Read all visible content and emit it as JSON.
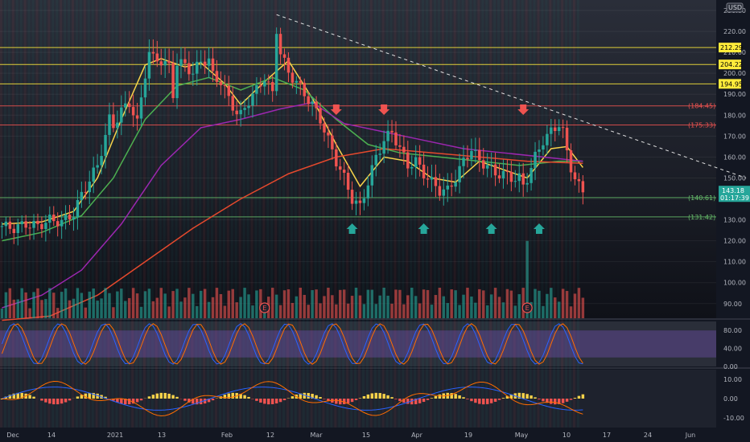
{
  "chart_data": [
    {
      "type": "candlestick",
      "title": "",
      "currency": "USD",
      "ylim": [
        83,
        235
      ],
      "yticks": [
        90,
        100,
        110,
        120,
        130,
        140,
        150,
        160,
        170,
        180,
        190,
        200,
        210,
        220,
        230
      ],
      "ytick_labels": [
        "90.00",
        "100.00",
        "110.00",
        "120.00",
        "130.00",
        "140.00",
        "150.00",
        "160.00",
        "170.00",
        "180.00",
        "190.00",
        "200.00",
        "210.00",
        "220.00",
        "230.00"
      ],
      "x_labels": [
        "Dec",
        "14",
        "2021",
        "13",
        "Feb",
        "12",
        "Mar",
        "15",
        "Apr",
        "19",
        "May",
        "10",
        "17",
        "24",
        "Jun"
      ],
      "close_path": [
        [
          0,
          127
        ],
        [
          3,
          126
        ],
        [
          6,
          128
        ],
        [
          9,
          127
        ],
        [
          12,
          130
        ],
        [
          15,
          129
        ],
        [
          18,
          133
        ],
        [
          20,
          142
        ],
        [
          22,
          149
        ],
        [
          24,
          156
        ],
        [
          26,
          170
        ],
        [
          27,
          178
        ],
        [
          28,
          175
        ],
        [
          30,
          182
        ],
        [
          32,
          186
        ],
        [
          34,
          176
        ],
        [
          36,
          200
        ],
        [
          37,
          210
        ],
        [
          38,
          207
        ],
        [
          40,
          206
        ],
        [
          42,
          203
        ],
        [
          43,
          190
        ],
        [
          44,
          205
        ],
        [
          46,
          204
        ],
        [
          48,
          200
        ],
        [
          50,
          206
        ],
        [
          52,
          206
        ],
        [
          53,
          199
        ],
        [
          55,
          196
        ],
        [
          57,
          188
        ],
        [
          59,
          181
        ],
        [
          60,
          180
        ],
        [
          62,
          187
        ],
        [
          64,
          192
        ],
        [
          66,
          198
        ],
        [
          68,
          190
        ],
        [
          69,
          221
        ],
        [
          70,
          210
        ],
        [
          72,
          200
        ],
        [
          74,
          196
        ],
        [
          76,
          190
        ],
        [
          78,
          185
        ],
        [
          80,
          178
        ],
        [
          82,
          168
        ],
        [
          84,
          158
        ],
        [
          86,
          150
        ],
        [
          88,
          140
        ],
        [
          90,
          136
        ],
        [
          92,
          148
        ],
        [
          94,
          160
        ],
        [
          96,
          168
        ],
        [
          98,
          172
        ],
        [
          100,
          164
        ],
        [
          102,
          156
        ],
        [
          104,
          158
        ],
        [
          106,
          152
        ],
        [
          108,
          148
        ],
        [
          110,
          144
        ],
        [
          112,
          144
        ],
        [
          114,
          150
        ],
        [
          116,
          158
        ],
        [
          118,
          164
        ],
        [
          120,
          158
        ],
        [
          122,
          156
        ],
        [
          124,
          152
        ],
        [
          126,
          152
        ],
        [
          128,
          150
        ],
        [
          130,
          150
        ],
        [
          131,
          146
        ],
        [
          132,
          150
        ],
        [
          134,
          160
        ],
        [
          136,
          168
        ],
        [
          138,
          172
        ],
        [
          140,
          176
        ],
        [
          141,
          172
        ],
        [
          142,
          162
        ],
        [
          143,
          155
        ],
        [
          144,
          150
        ],
        [
          145,
          146
        ],
        [
          146,
          143.18
        ]
      ],
      "sessions": 146,
      "ma_lines": [
        {
          "name": "ema-fast",
          "color": "#f7d24a",
          "values": [
            [
              0,
              128
            ],
            [
              10,
              129
            ],
            [
              18,
              134
            ],
            [
              24,
              150
            ],
            [
              30,
              178
            ],
            [
              36,
              204
            ],
            [
              40,
              207
            ],
            [
              46,
              203
            ],
            [
              50,
              205
            ],
            [
              56,
              195
            ],
            [
              60,
              185
            ],
            [
              66,
              196
            ],
            [
              72,
              206
            ],
            [
              78,
              188
            ],
            [
              84,
              166
            ],
            [
              90,
              146
            ],
            [
              96,
              160
            ],
            [
              102,
              158
            ],
            [
              108,
              150
            ],
            [
              114,
              148
            ],
            [
              120,
              158
            ],
            [
              126,
              154
            ],
            [
              132,
              150
            ],
            [
              138,
              164
            ],
            [
              142,
              165
            ],
            [
              146,
              155
            ]
          ]
        },
        {
          "name": "sma-mid",
          "color": "#4caf50",
          "values": [
            [
              0,
              120
            ],
            [
              10,
              124
            ],
            [
              20,
              132
            ],
            [
              28,
              150
            ],
            [
              36,
              178
            ],
            [
              44,
              194
            ],
            [
              52,
              198
            ],
            [
              60,
              192
            ],
            [
              68,
              198
            ],
            [
              76,
              192
            ],
            [
              84,
              178
            ],
            [
              92,
              166
            ],
            [
              100,
              162
            ],
            [
              110,
              160
            ],
            [
              120,
              158
            ],
            [
              130,
              156
            ],
            [
              140,
              158
            ],
            [
              146,
              158
            ]
          ]
        },
        {
          "name": "sma-long",
          "color": "#9c27b0",
          "values": [
            [
              0,
              88
            ],
            [
              10,
              94
            ],
            [
              20,
              106
            ],
            [
              30,
              128
            ],
            [
              40,
              156
            ],
            [
              50,
              174
            ],
            [
              60,
              178
            ],
            [
              70,
              183
            ],
            [
              78,
              186
            ],
            [
              86,
              176
            ],
            [
              96,
              172
            ],
            [
              106,
              168
            ],
            [
              116,
              164
            ],
            [
              126,
              162
            ],
            [
              136,
              160
            ],
            [
              146,
              158
            ]
          ]
        },
        {
          "name": "sma-200",
          "color": "#e5492d",
          "values": [
            [
              0,
              82
            ],
            [
              12,
              84
            ],
            [
              24,
              94
            ],
            [
              36,
              110
            ],
            [
              48,
              126
            ],
            [
              60,
              140
            ],
            [
              72,
              152
            ],
            [
              84,
              160
            ],
            [
              96,
              164
            ],
            [
              108,
              162
            ],
            [
              120,
              160
            ],
            [
              132,
              158
            ],
            [
              146,
              157
            ]
          ]
        }
      ],
      "horizontal_levels": [
        {
          "value": 212.29,
          "label": "212.29",
          "color": "#ffeb3b",
          "boxed": true
        },
        {
          "value": 204.22,
          "label": "204.22",
          "color": "#ffeb3b",
          "boxed": true
        },
        {
          "value": 194.95,
          "label": "194.95",
          "color": "#ffeb3b",
          "boxed": true
        },
        {
          "value": 184.45,
          "label": "(184.45)",
          "color": "#ef5350",
          "boxed": false
        },
        {
          "value": 175.33,
          "label": "(175.33)",
          "color": "#ef5350",
          "boxed": false
        },
        {
          "value": 140.61,
          "label": "(140.61)",
          "color": "#66bb6a",
          "boxed": false
        },
        {
          "value": 131.42,
          "label": "(131.42)",
          "color": "#66bb6a",
          "boxed": false
        }
      ],
      "last_price": {
        "value": 143.18,
        "label": "143.18",
        "countdown": "01:17:39",
        "color": "#26a69a"
      },
      "trendline": {
        "from": [
          69,
          228
        ],
        "to": [
          187,
          150
        ]
      },
      "down_arrows": [
        84,
        96,
        131
      ],
      "up_arrows": [
        88,
        106,
        123,
        135
      ],
      "earnings_markers": [
        {
          "x": 66,
          "label": "E"
        },
        {
          "x": 132,
          "label": "E"
        }
      ]
    },
    {
      "type": "line",
      "name": "stochastic-rsi",
      "ylim": [
        0,
        100
      ],
      "yticks": [
        0,
        40,
        80
      ],
      "ytick_labels": [
        "0.00",
        "40.00",
        "80.00"
      ],
      "band": [
        20,
        80
      ]
    },
    {
      "type": "bar",
      "name": "macd",
      "ylim": [
        -15,
        15
      ],
      "yticks": [
        -10,
        0,
        10
      ],
      "ytick_labels": [
        "-10.00",
        "0.00",
        "10.00"
      ]
    }
  ]
}
